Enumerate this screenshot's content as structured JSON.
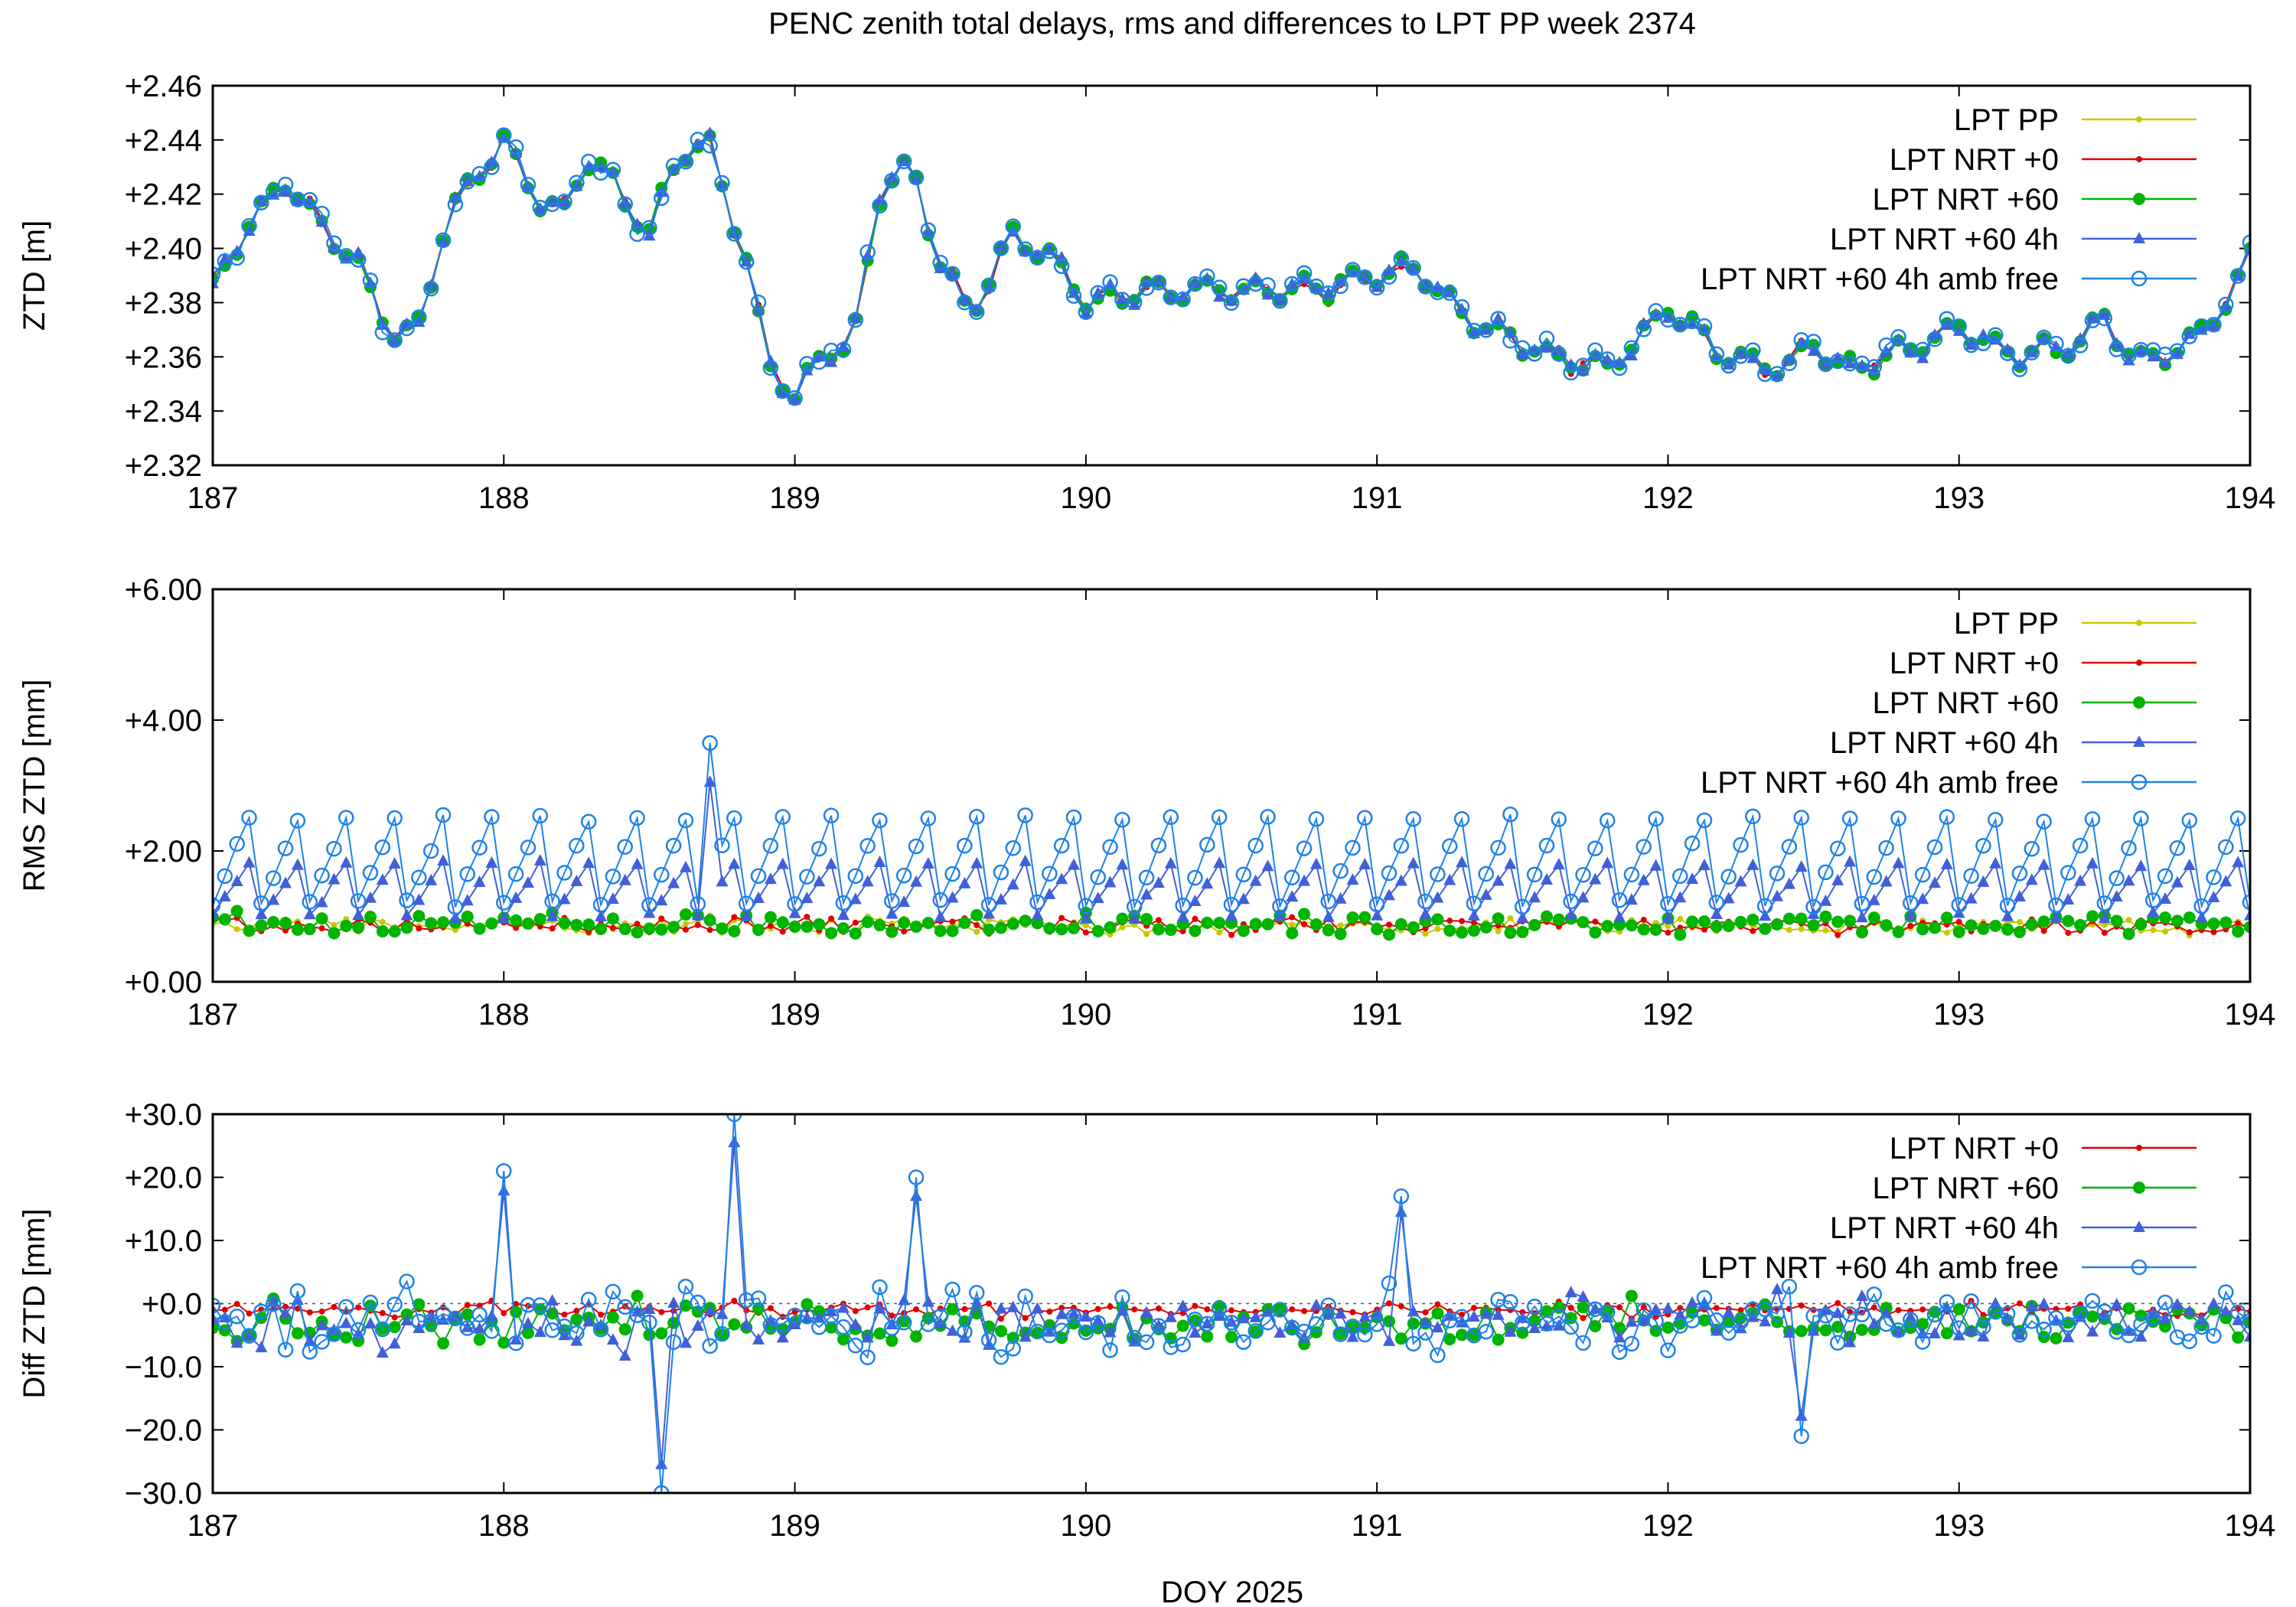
{
  "title": "PENC zenith total delays, rms and differences to LPT PP week 2374",
  "xlabel": "DOY 2025",
  "series_styles": [
    {
      "name": "LPT PP",
      "color": "#c8c800",
      "marker": "dot"
    },
    {
      "name": "LPT NRT +0",
      "color": "#e00000",
      "marker": "dot"
    },
    {
      "name": "LPT NRT +60",
      "color": "#00b400",
      "marker": "circle-filled"
    },
    {
      "name": "LPT NRT +60 4h",
      "color": "#4060d8",
      "marker": "triangle"
    },
    {
      "name": "LPT NRT +60 4h amb free",
      "color": "#1e82e6",
      "marker": "circle-open"
    }
  ],
  "chart_data": [
    {
      "type": "line",
      "ylabel": "ZTD [m]",
      "xlim": [
        187,
        194
      ],
      "ylim": [
        2.32,
        2.46
      ],
      "xticks": [
        "187",
        "188",
        "189",
        "190",
        "191",
        "192",
        "193",
        "194"
      ],
      "yticks": [
        "+2.32",
        "+2.34",
        "+2.36",
        "+2.38",
        "+2.40",
        "+2.42",
        "+2.44",
        "+2.46"
      ],
      "legend": [
        "LPT PP",
        "LPT NRT +0",
        "LPT NRT +60",
        "LPT NRT +60 4h",
        "LPT NRT +60 4h amb free"
      ],
      "legend_position": "top-right",
      "trend": {
        "x": [
          187.0,
          187.1,
          187.25,
          187.4,
          187.5,
          187.6,
          187.7,
          187.8,
          188.0,
          188.1,
          188.2,
          188.3,
          188.4,
          188.5,
          188.6,
          188.7,
          188.85,
          188.9,
          189.0,
          189.1,
          189.2,
          189.3,
          189.4,
          189.5,
          189.6,
          189.75,
          189.9,
          190.0,
          190.2,
          190.5,
          190.8,
          191.0,
          191.15,
          191.3,
          191.5,
          191.6,
          191.8,
          192.0,
          192.2,
          192.4,
          192.5,
          192.6,
          192.8,
          193.0,
          193.2,
          193.4,
          193.5,
          193.6,
          193.8,
          193.95,
          194.0
        ],
        "y": [
          2.385,
          2.405,
          2.425,
          2.405,
          2.395,
          2.37,
          2.368,
          2.41,
          2.44,
          2.42,
          2.412,
          2.435,
          2.42,
          2.405,
          2.435,
          2.44,
          2.39,
          2.36,
          2.345,
          2.362,
          2.365,
          2.425,
          2.43,
          2.395,
          2.375,
          2.405,
          2.395,
          2.38,
          2.385,
          2.385,
          2.385,
          2.39,
          2.392,
          2.375,
          2.365,
          2.36,
          2.356,
          2.378,
          2.36,
          2.355,
          2.365,
          2.355,
          2.362,
          2.37,
          2.36,
          2.365,
          2.375,
          2.358,
          2.365,
          2.385,
          2.398
        ]
      },
      "series_count": 5
    },
    {
      "type": "line",
      "ylabel": "RMS ZTD [mm]",
      "xlim": [
        187,
        194
      ],
      "ylim": [
        0,
        6
      ],
      "xticks": [
        "187",
        "188",
        "189",
        "190",
        "191",
        "192",
        "193",
        "194"
      ],
      "yticks": [
        "+0.00",
        "+2.00",
        "+4.00",
        "+6.00"
      ],
      "legend": [
        "LPT PP",
        "LPT NRT +0",
        "LPT NRT +60",
        "LPT NRT +60 4h",
        "LPT NRT +60 4h amb free"
      ],
      "legend_position": "top-right",
      "series_levels": [
        {
          "name": "LPT PP",
          "low": 0.75,
          "high": 1.1
        },
        {
          "name": "LPT NRT +0",
          "low": 0.75,
          "high": 1.1
        },
        {
          "name": "LPT NRT +60",
          "low": 0.75,
          "high": 1.2
        },
        {
          "name": "LPT NRT +60 4h",
          "low": 1.0,
          "high": 1.8
        },
        {
          "name": "LPT NRT +60 4h amb free",
          "low": 1.2,
          "high": 2.5
        }
      ],
      "peak": {
        "x": 188.7,
        "y": 3.65
      }
    },
    {
      "type": "line",
      "ylabel": "Diff ZTD [mm]",
      "xlim": [
        187,
        194
      ],
      "ylim": [
        -30,
        30
      ],
      "xticks": [
        "187",
        "188",
        "189",
        "190",
        "191",
        "192",
        "193",
        "194"
      ],
      "yticks": [
        "−30.0",
        "−20.0",
        "−10.0",
        "+0.0",
        "+10.0",
        "+20.0",
        "+30.0"
      ],
      "legend": [
        "LPT NRT +0",
        "LPT NRT +60",
        "LPT NRT +60 4h",
        "LPT NRT +60 4h amb free"
      ],
      "legend_position": "top-right",
      "zero_line": true,
      "spikes": [
        {
          "x": 188.0,
          "y": 21
        },
        {
          "x": 188.55,
          "y": -30
        },
        {
          "x": 188.8,
          "y": 30
        },
        {
          "x": 189.4,
          "y": 20
        },
        {
          "x": 191.1,
          "y": 17
        },
        {
          "x": 192.45,
          "y": -21
        }
      ]
    }
  ]
}
